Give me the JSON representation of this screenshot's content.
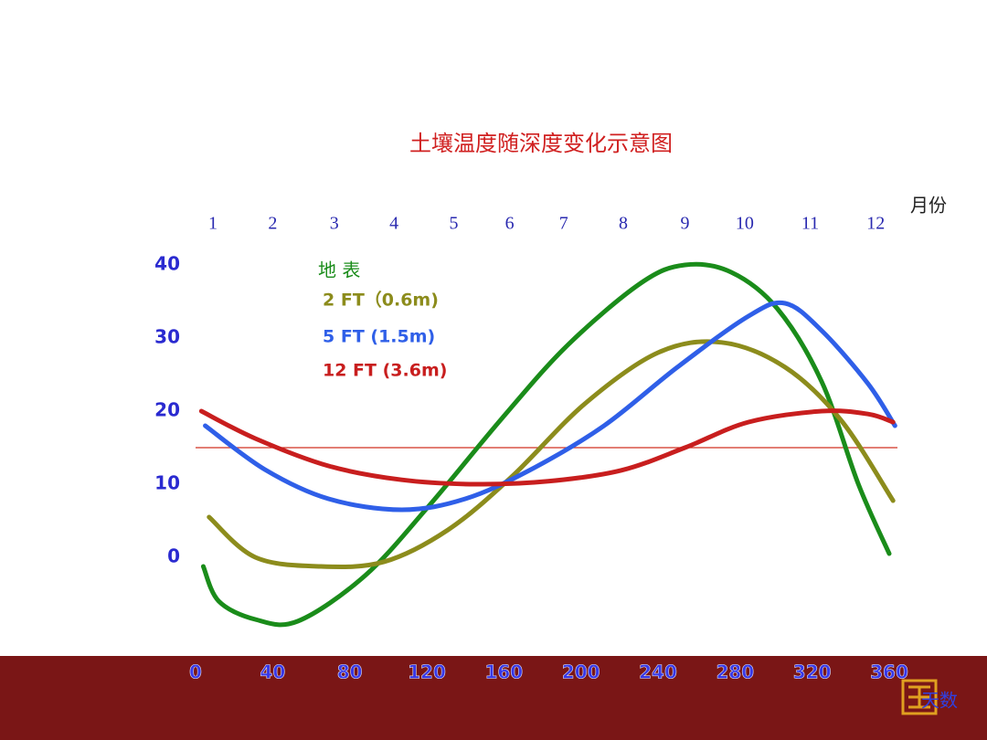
{
  "chart_data": {
    "type": "line",
    "title": "土壤温度随深度变化示意图",
    "x_label": "天数",
    "x2_label": "月份",
    "xlim": [
      0,
      360
    ],
    "xticks": [
      0,
      40,
      80,
      120,
      160,
      200,
      240,
      280,
      320,
      360
    ],
    "x2ticks": [
      {
        "value": 9,
        "label": "1"
      },
      {
        "value": 40,
        "label": "2"
      },
      {
        "value": 72,
        "label": "3"
      },
      {
        "value": 103,
        "label": "4"
      },
      {
        "value": 134,
        "label": "5"
      },
      {
        "value": 163,
        "label": "6"
      },
      {
        "value": 191,
        "label": "7"
      },
      {
        "value": 222,
        "label": "8"
      },
      {
        "value": 254,
        "label": "9"
      },
      {
        "value": 285,
        "label": "10"
      },
      {
        "value": 319,
        "label": "11"
      },
      {
        "value": 353,
        "label": "12"
      }
    ],
    "ylim": [
      -13,
      45
    ],
    "yticks": [
      0,
      10,
      20,
      30,
      40
    ],
    "reference_line": 15,
    "series": [
      {
        "name": "地 表",
        "color": "#1a8c1a",
        "x": [
          4,
          12,
          31,
          53,
          88,
          121,
          159,
          193,
          231,
          254,
          278,
          302,
          325,
          344,
          360
        ],
        "values": [
          -1.25,
          -6,
          -8.5,
          -8.75,
          -2.5,
          7,
          19,
          29,
          37.5,
          40,
          39,
          34,
          24,
          10,
          0.5
        ]
      },
      {
        "name": "2 FT（0.6m)",
        "color": "#8c8c1c",
        "x": [
          7,
          31,
          65,
          98,
          131,
          164,
          202,
          240,
          273,
          306,
          335,
          362
        ],
        "values": [
          5.5,
          0,
          -1.25,
          -0.6,
          3.75,
          11,
          21,
          28,
          29.4,
          26,
          18.75,
          7.75
        ]
      },
      {
        "name": "5 FT (1.5m)",
        "color": "#2f5fe8",
        "x": [
          5,
          36,
          69,
          107,
          140,
          174,
          212,
          250,
          287,
          306,
          325,
          349,
          363
        ],
        "values": [
          18,
          12,
          8,
          6.5,
          8,
          12,
          18,
          26,
          33,
          34.75,
          31,
          23.75,
          18
        ]
      },
      {
        "name": "12 FT (3.6m)",
        "color": "#c81e1e",
        "x": [
          3,
          31,
          69,
          107,
          145,
          183,
          221,
          254,
          287,
          325,
          349,
          362
        ],
        "values": [
          20,
          16.25,
          12.5,
          10.6,
          10,
          10.4,
          11.9,
          15,
          18.5,
          20,
          19.6,
          18.5
        ]
      }
    ]
  }
}
